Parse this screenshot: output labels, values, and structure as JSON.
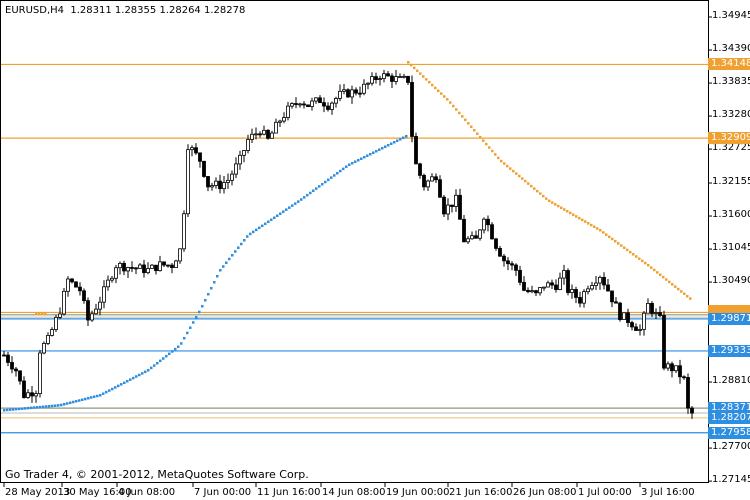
{
  "header": {
    "symbol": "EURUSD,H4",
    "ohlc": "1.28311 1.28355 1.28264 1.28278"
  },
  "footer": {
    "copyright": "Go Trader 4, © 2001-2012, MetaQuotes Software Corp."
  },
  "colors": {
    "orange": "#f0a030",
    "blue": "#2e8ee0",
    "gray": "#8a9a80",
    "bg": "#ffffff"
  },
  "chart_data": {
    "type": "candlestick",
    "y_ticks": [
      "1.34945",
      "1.34390",
      "1.33835",
      "1.33280",
      "1.32725",
      "1.32155",
      "1.31600",
      "1.31045",
      "1.30490",
      "1.28810",
      "1.27700",
      "1.27145"
    ],
    "ylim": [
      1.27145,
      1.34945
    ],
    "x_ticks": [
      "28 May 2013",
      "30 May 16:00",
      "4 Jun 08:00",
      "7 Jun 00:00",
      "11 Jun 16:00",
      "14 Jun 08:00",
      "19 Jun 00:00",
      "21 Jun 16:00",
      "26 Jun 08:00",
      "1 Jul 00:00",
      "3 Jul 16:00"
    ],
    "bar_count": 173,
    "close_path": [
      [
        0,
        1.29264
      ],
      [
        3,
        1.29012
      ],
      [
        5,
        1.28592
      ],
      [
        8,
        1.28676
      ],
      [
        9,
        1.29348
      ],
      [
        11,
        1.29516
      ],
      [
        14,
        1.30021
      ],
      [
        16,
        1.30525
      ],
      [
        19,
        1.30357
      ],
      [
        21,
        1.29853
      ],
      [
        24,
        1.30189
      ],
      [
        28,
        1.30777
      ],
      [
        36,
        1.30693
      ],
      [
        39,
        1.30777
      ],
      [
        42,
        1.30777
      ],
      [
        44,
        1.31029
      ],
      [
        45,
        1.31701
      ],
      [
        46,
        1.32794
      ],
      [
        49,
        1.32542
      ],
      [
        51,
        1.32121
      ],
      [
        54,
        1.32121
      ],
      [
        56,
        1.32206
      ],
      [
        59,
        1.32542
      ],
      [
        61,
        1.32878
      ],
      [
        64,
        1.33046
      ],
      [
        66,
        1.32878
      ],
      [
        69,
        1.33214
      ],
      [
        71,
        1.33382
      ],
      [
        74,
        1.3355
      ],
      [
        76,
        1.33466
      ],
      [
        79,
        1.3355
      ],
      [
        81,
        1.33466
      ],
      [
        84,
        1.33634
      ],
      [
        89,
        1.33718
      ],
      [
        94,
        1.3397
      ],
      [
        99,
        1.33886
      ],
      [
        101,
        1.33886
      ],
      [
        102,
        1.32962
      ],
      [
        103,
        1.32458
      ],
      [
        105,
        1.32121
      ],
      [
        108,
        1.3229
      ],
      [
        110,
        1.31701
      ],
      [
        113,
        1.31869
      ],
      [
        115,
        1.31197
      ],
      [
        118,
        1.31197
      ],
      [
        120,
        1.31617
      ],
      [
        123,
        1.31113
      ],
      [
        125,
        1.30861
      ],
      [
        128,
        1.30693
      ],
      [
        130,
        1.30357
      ],
      [
        133,
        1.30273
      ],
      [
        135,
        1.30441
      ],
      [
        138,
        1.30441
      ],
      [
        140,
        1.30609
      ],
      [
        141,
        1.30357
      ],
      [
        144,
        1.30189
      ],
      [
        146,
        1.30441
      ],
      [
        149,
        1.30609
      ],
      [
        151,
        1.30357
      ],
      [
        154,
        1.29937
      ],
      [
        156,
        1.29853
      ],
      [
        159,
        1.29685
      ],
      [
        161,
        1.30105
      ],
      [
        164,
        1.29853
      ],
      [
        165,
        1.29096
      ],
      [
        168,
        1.29012
      ],
      [
        170,
        1.28845
      ],
      [
        171,
        1.2834
      ],
      [
        172,
        1.28278
      ]
    ],
    "ma_blue": [
      [
        0,
        1.2834
      ],
      [
        14,
        1.28424
      ],
      [
        24,
        1.28592
      ],
      [
        36,
        1.29012
      ],
      [
        44,
        1.29433
      ],
      [
        49,
        1.30021
      ],
      [
        54,
        1.30693
      ],
      [
        61,
        1.31281
      ],
      [
        74,
        1.31869
      ],
      [
        86,
        1.32458
      ],
      [
        101,
        1.32962
      ]
    ],
    "ma_orange": [
      [
        101,
        1.34189
      ],
      [
        111,
        1.3355
      ],
      [
        124,
        1.32542
      ],
      [
        136,
        1.31869
      ],
      [
        149,
        1.31365
      ],
      [
        161,
        1.30777
      ],
      [
        172,
        1.3019
      ]
    ],
    "levels": [
      {
        "price": "1.34148",
        "color": "orange",
        "label": true
      },
      {
        "price": "1.32909",
        "color": "orange",
        "label": true
      },
      {
        "price": "1.29980",
        "color": "orange",
        "label": false
      },
      {
        "price": "1.29940",
        "color": "gray",
        "label": false
      },
      {
        "price": "1.29900",
        "color": "lightgray",
        "label": false
      },
      {
        "price": "1.29871",
        "color": "blue",
        "label": true
      },
      {
        "price": "1.29333",
        "color": "blue",
        "label": true
      },
      {
        "price": "1.28371",
        "color": "gray",
        "label": true
      },
      {
        "price": "1.28290",
        "color": "lightgray",
        "label": false
      },
      {
        "price": "1.28207",
        "color": "lightorange",
        "label": true
      },
      {
        "price": "1.27958",
        "color": "blue",
        "label": true
      }
    ]
  }
}
